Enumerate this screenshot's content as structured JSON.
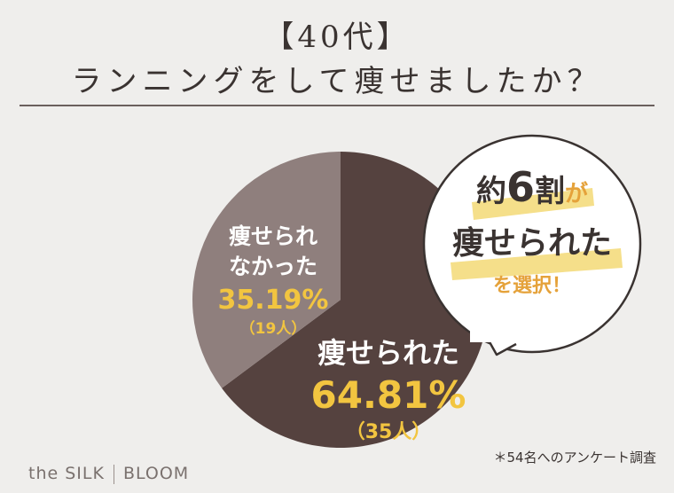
{
  "header": {
    "title_line1": "【40代】",
    "title_line2": "ランニングをして痩せましたか？"
  },
  "chart_data": {
    "type": "pie",
    "slices": [
      {
        "name": "痩せられた",
        "percent": 64.81,
        "count": 35,
        "percent_label": "64.81%",
        "count_label": "（35人）",
        "color": "#55423f"
      },
      {
        "name": "痩せられなかった",
        "name_line1": "痩せられ",
        "name_line2": "なかった",
        "percent": 35.19,
        "count": 19,
        "percent_label": "35.19%",
        "count_label": "（19人）",
        "color": "#8f7f7d"
      }
    ]
  },
  "callout": {
    "line1_a": "約",
    "line1_b": "6",
    "line1_c": "割",
    "line1_d": "が",
    "line2": "痩せられた",
    "line3": "を選択！"
  },
  "colors": {
    "accent_yellow": "#f2c540",
    "accent_orange": "#e5a23a",
    "highlight": "#f5df8a",
    "background": "#efeeec"
  },
  "footnote": "＊54名へのアンケート調査",
  "brand": {
    "left": "the SILK",
    "right": "BLOOM"
  }
}
